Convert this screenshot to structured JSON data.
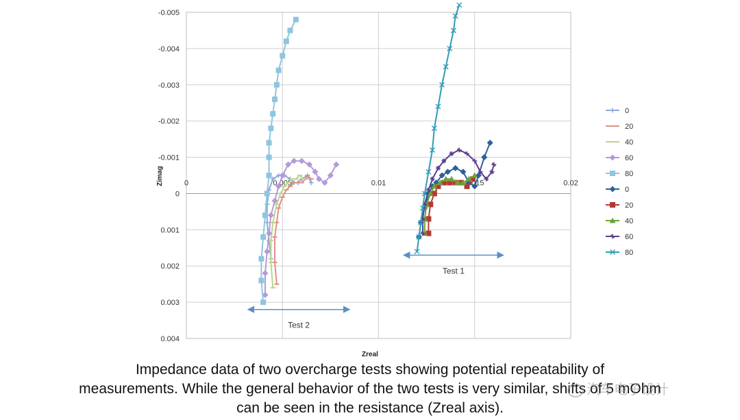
{
  "chart_data": {
    "type": "scatter",
    "title": "",
    "xlabel": "Zreal",
    "ylabel": "Zimag",
    "xlim": [
      0,
      0.02
    ],
    "ylim": [
      -0.005,
      0.004
    ],
    "y_inverted": true,
    "grid": true,
    "legend_position": "right",
    "x_ticks": [
      "0",
      "0.005",
      "0.01",
      "0.015",
      "0.02"
    ],
    "y_ticks": [
      "-0.005",
      "-0.004",
      "-0.003",
      "-0.002",
      "-0.001",
      "0",
      "0.001",
      "0.002",
      "0.003",
      "0.004"
    ],
    "series": [
      {
        "name": "0",
        "group": "Test 2",
        "color": "#8fa8d8",
        "marker": "plus",
        "x": [
          0.0044,
          0.0043,
          0.0042,
          0.0042,
          0.0043,
          0.0045,
          0.0048,
          0.0051,
          0.0054,
          0.0056,
          0.0058,
          0.006,
          0.0063,
          0.0065
        ],
        "y": [
          0.0018,
          0.0013,
          0.0008,
          0.0003,
          -0.0001,
          -0.0004,
          -0.0005,
          -0.0005,
          -0.0004,
          -0.0003,
          -0.0003,
          -0.0004,
          -0.0005,
          -0.0003
        ]
      },
      {
        "name": "20",
        "group": "Test 2",
        "color": "#e08f86",
        "marker": "dash",
        "x": [
          0.0047,
          0.0046,
          0.0046,
          0.0047,
          0.0048,
          0.005,
          0.0052,
          0.0054,
          0.0056,
          0.0058,
          0.006,
          0.0062,
          0.0063,
          0.0065
        ],
        "y": [
          0.0025,
          0.0019,
          0.0012,
          0.0008,
          0.0004,
          0.0001,
          -0.0001,
          -0.0002,
          -0.0003,
          -0.0003,
          -0.0003,
          -0.0004,
          -0.0005,
          -0.0004
        ]
      },
      {
        "name": "40",
        "group": "Test 2",
        "color": "#bcd58c",
        "marker": "dash",
        "x": [
          0.0045,
          0.0044,
          0.0044,
          0.0045,
          0.0047,
          0.0049,
          0.0051,
          0.0053,
          0.0055,
          0.0057,
          0.0059,
          0.0061
        ],
        "y": [
          0.0026,
          0.0019,
          0.0013,
          0.0008,
          0.0003,
          0.0,
          -0.0002,
          -0.0003,
          -0.0004,
          -0.0004,
          -0.0005,
          -0.0004
        ]
      },
      {
        "name": "60",
        "group": "Test 2",
        "color": "#b39ad8",
        "marker": "diamond",
        "x": [
          0.0041,
          0.0041,
          0.0042,
          0.0043,
          0.0044,
          0.0046,
          0.0048,
          0.005,
          0.0053,
          0.0056,
          0.006,
          0.0064,
          0.0067,
          0.0069,
          0.0072,
          0.0075,
          0.0078
        ],
        "y": [
          0.0028,
          0.0022,
          0.0016,
          0.0011,
          0.0006,
          0.0002,
          -0.0002,
          -0.0005,
          -0.0008,
          -0.0009,
          -0.0009,
          -0.0008,
          -0.0006,
          -0.0004,
          -0.0003,
          -0.0005,
          -0.0008
        ]
      },
      {
        "name": "80",
        "group": "Test 2",
        "color": "#8ec5e0",
        "marker": "square",
        "x": [
          0.004,
          0.0039,
          0.0039,
          0.004,
          0.0041,
          0.0042,
          0.0043,
          0.0043,
          0.0043,
          0.0044,
          0.0045,
          0.0046,
          0.0047,
          0.0048,
          0.005,
          0.0052,
          0.0054,
          0.0057
        ],
        "y": [
          0.003,
          0.0024,
          0.0018,
          0.0012,
          0.0006,
          0.0,
          -0.0005,
          -0.001,
          -0.0014,
          -0.0018,
          -0.0022,
          -0.0026,
          -0.003,
          -0.0034,
          -0.0038,
          -0.0042,
          -0.0045,
          -0.0048
        ]
      },
      {
        "name": "0",
        "group": "Test 1",
        "color": "#2d5f99",
        "marker": "diamond",
        "x": [
          0.0121,
          0.0122,
          0.0124,
          0.0126,
          0.0128,
          0.013,
          0.0133,
          0.0136,
          0.014,
          0.0144,
          0.0147,
          0.015,
          0.0152,
          0.0155,
          0.0158
        ],
        "y": [
          0.0012,
          0.0008,
          0.0004,
          0.0,
          -0.0002,
          -0.0003,
          -0.0005,
          -0.0006,
          -0.0007,
          -0.0006,
          -0.0003,
          -0.0002,
          -0.0005,
          -0.001,
          -0.0014
        ]
      },
      {
        "name": "20",
        "group": "Test 1",
        "color": "#b33a33",
        "marker": "square",
        "x": [
          0.0126,
          0.0126,
          0.0127,
          0.0129,
          0.0131,
          0.0134,
          0.0137,
          0.014,
          0.0143,
          0.0146,
          0.0149
        ],
        "y": [
          0.0011,
          0.0007,
          0.0003,
          0.0,
          -0.0002,
          -0.0003,
          -0.0003,
          -0.0003,
          -0.0003,
          -0.0002,
          -0.0004
        ]
      },
      {
        "name": "40",
        "group": "Test 1",
        "color": "#6aa33a",
        "marker": "triangle",
        "x": [
          0.0124,
          0.0124,
          0.0125,
          0.0127,
          0.0129,
          0.0132,
          0.0135,
          0.0138,
          0.0141,
          0.0144,
          0.0147,
          0.015
        ],
        "y": [
          0.0011,
          0.0007,
          0.0003,
          0.0,
          -0.0002,
          -0.0003,
          -0.0004,
          -0.0004,
          -0.0003,
          -0.0003,
          -0.0004,
          -0.0005
        ]
      },
      {
        "name": "60",
        "group": "Test 1",
        "color": "#5b3d8c",
        "marker": "cross",
        "x": [
          0.0123,
          0.0123,
          0.0124,
          0.0126,
          0.0128,
          0.0131,
          0.0134,
          0.0138,
          0.0142,
          0.0146,
          0.015,
          0.0153,
          0.0156,
          0.0159,
          0.016
        ],
        "y": [
          0.0011,
          0.0007,
          0.0003,
          -0.0001,
          -0.0004,
          -0.0007,
          -0.0009,
          -0.0011,
          -0.0012,
          -0.0011,
          -0.0009,
          -0.0006,
          -0.0004,
          -0.0006,
          -0.0008
        ]
      },
      {
        "name": "80",
        "group": "Test 1",
        "color": "#2f9bb8",
        "marker": "x",
        "x": [
          0.012,
          0.0121,
          0.0122,
          0.0123,
          0.0124,
          0.0126,
          0.0128,
          0.0129,
          0.0131,
          0.0133,
          0.0135,
          0.0137,
          0.0139,
          0.014,
          0.0142
        ],
        "y": [
          0.0016,
          0.0012,
          0.0008,
          0.0004,
          0.0,
          -0.0006,
          -0.0012,
          -0.0018,
          -0.0024,
          -0.003,
          -0.0035,
          -0.004,
          -0.0045,
          -0.0049,
          -0.0052
        ]
      }
    ],
    "annotations": [
      {
        "text": "Test 1",
        "arrow_x": [
          0.0113,
          0.0165
        ],
        "y": 0.0017
      },
      {
        "text": "Test 2",
        "arrow_x": [
          0.0032,
          0.0085
        ],
        "y": 0.0032
      }
    ]
  },
  "caption": {
    "line1": "Impedance data of two overcharge tests showing potential repeatability of",
    "line2": "measurements. While the general behavior of the two tests is very similar, shifts of 5 mOhm",
    "line3": "can be seen in the resistance (Zreal axis)."
  },
  "watermark": "汽车电子设计"
}
